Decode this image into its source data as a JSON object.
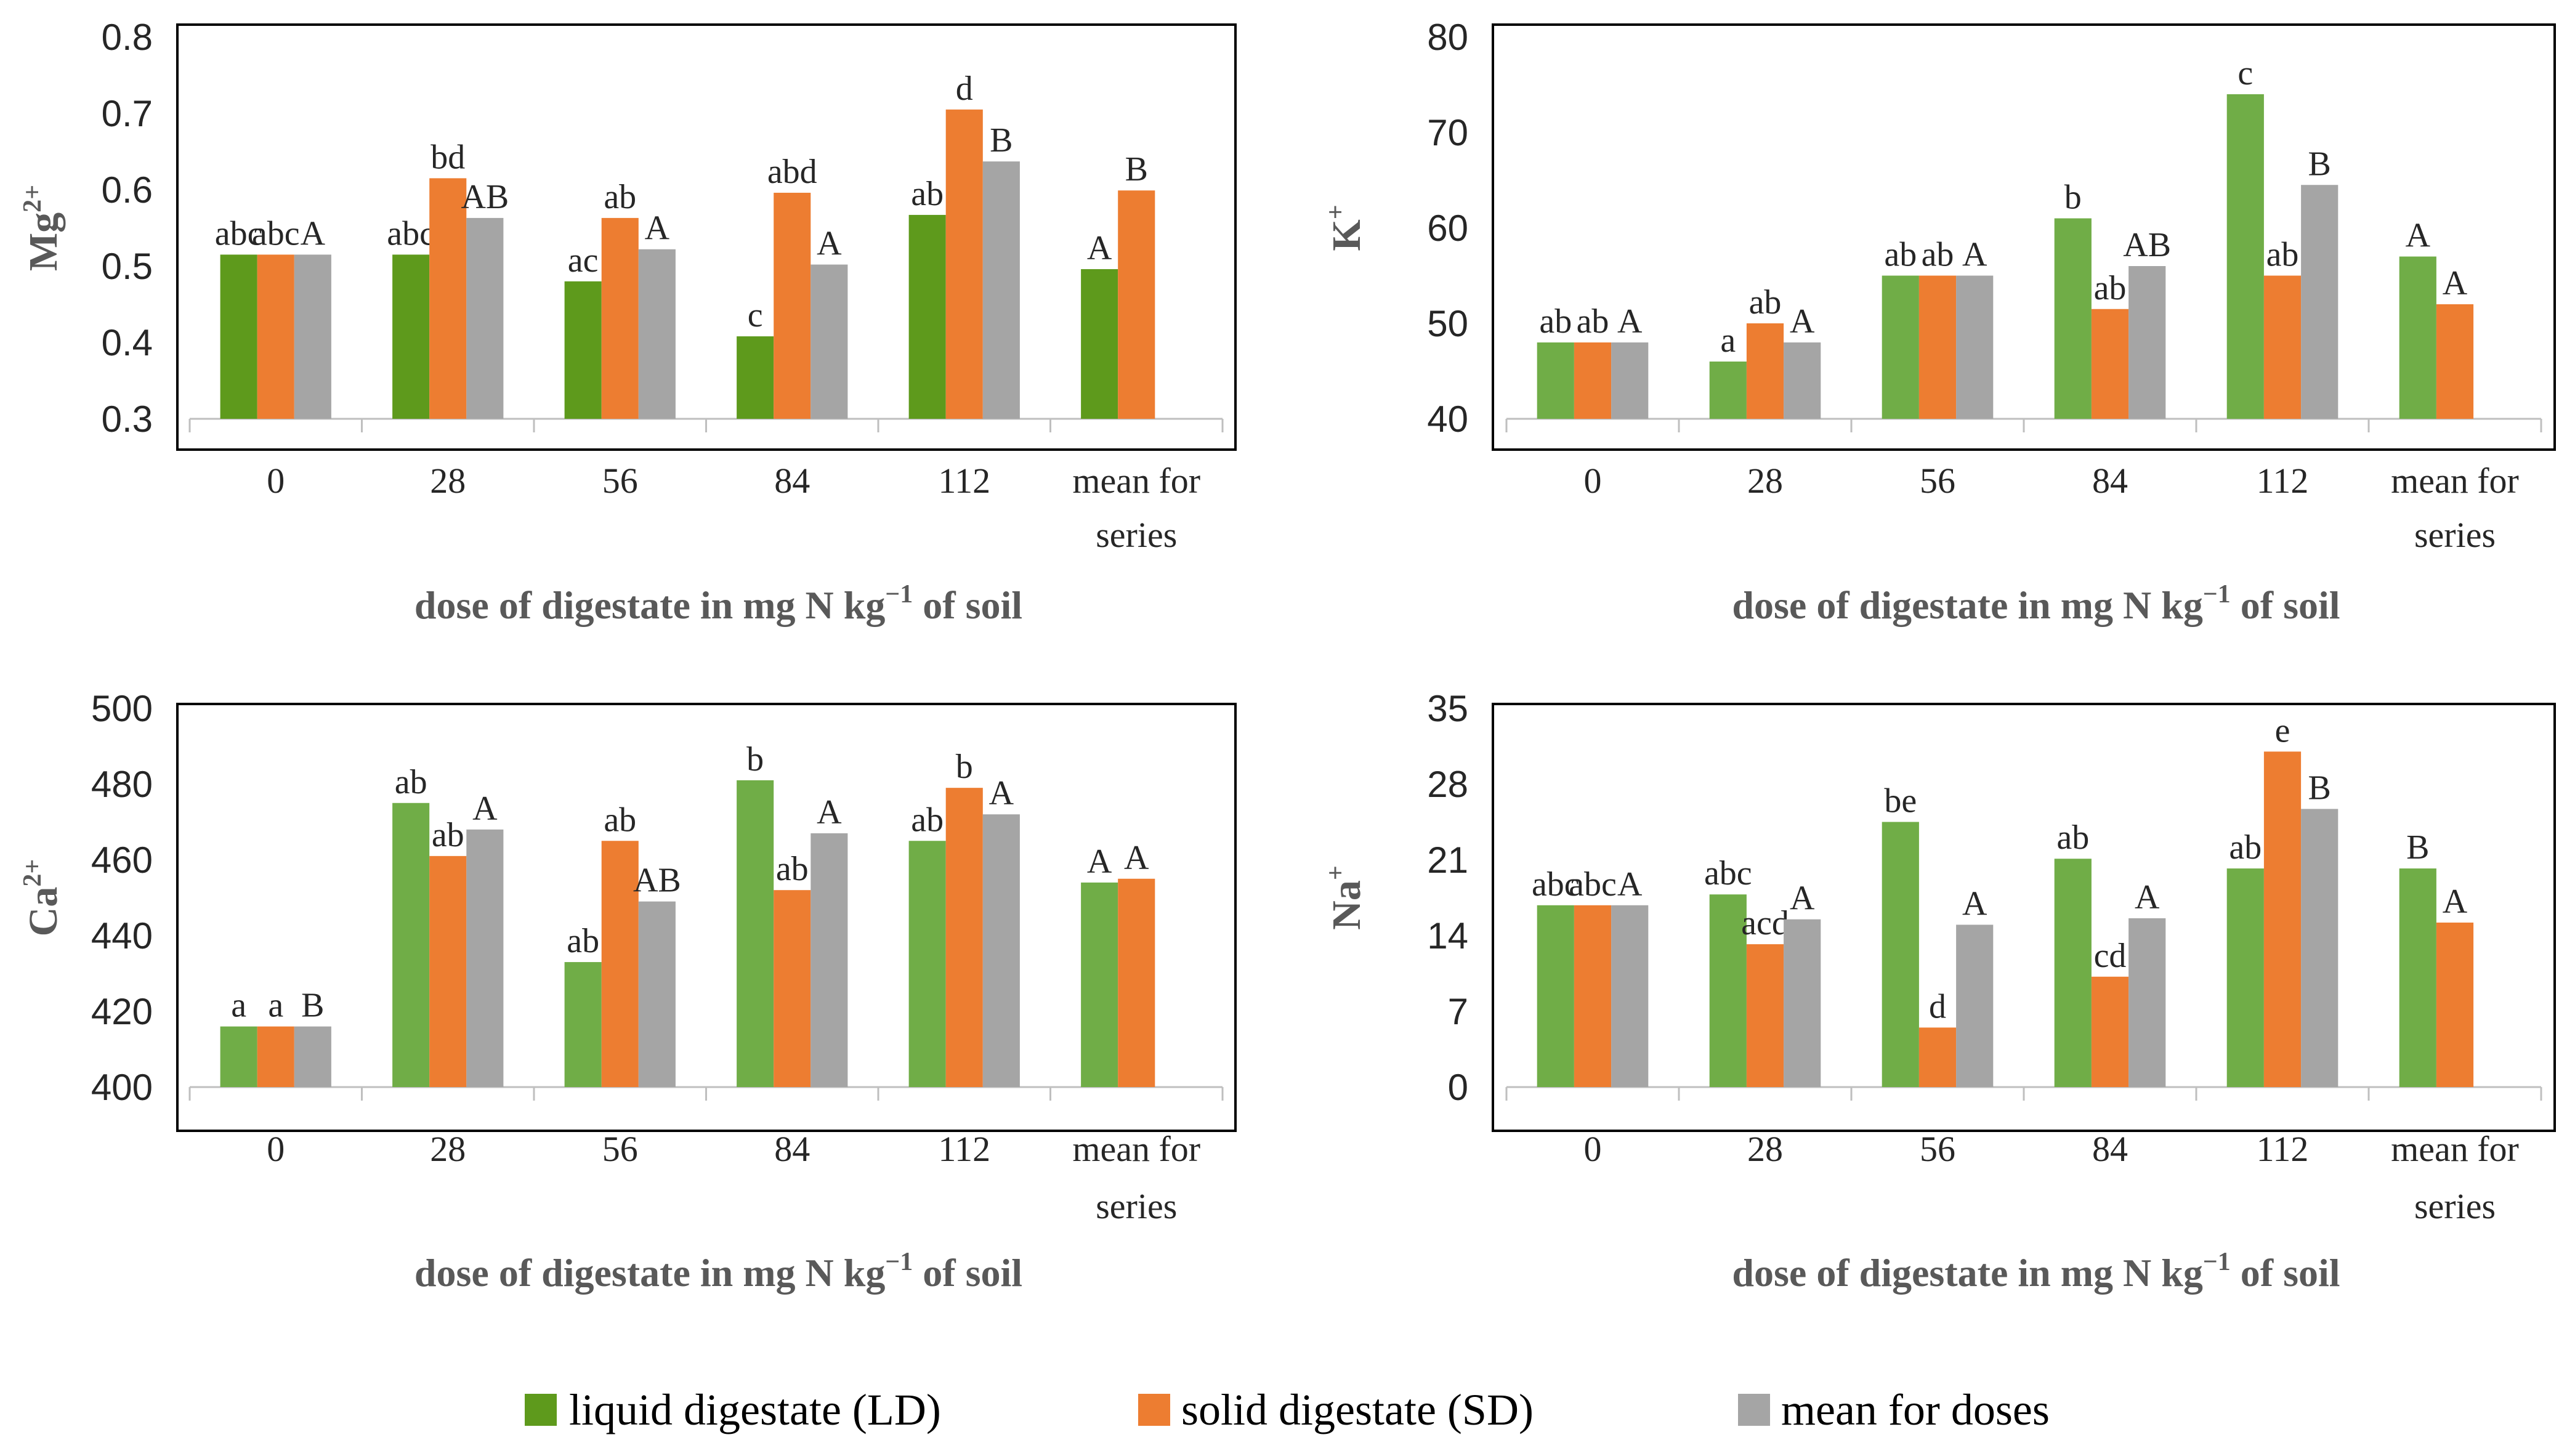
{
  "legend": [
    {
      "key": "ld",
      "label": "liquid digestate (LD)",
      "color": "#70ad47"
    },
    {
      "key": "sd",
      "label": "solid digestate (SD)",
      "color": "#ed7d31"
    },
    {
      "key": "mean",
      "label": "mean for doses",
      "color": "#a5a5a5"
    }
  ],
  "chart_data": [
    {
      "id": "mg",
      "type": "bar",
      "ylabel": "Mg",
      "ylabel_sup": "2+",
      "xlabel": "dose of digestate in mg N kg",
      "xlabel_sup": "−1",
      "xlabel_tail": " of soil",
      "ylim": [
        0.3,
        0.8
      ],
      "yticks": [
        "0.3",
        "0.4",
        "0.5",
        "0.6",
        "0.7",
        "0.8"
      ],
      "yticks_values": [
        0.3,
        0.4,
        0.5,
        0.6,
        0.7,
        0.8
      ],
      "categories": [
        [
          "0"
        ],
        [
          "28"
        ],
        [
          "56"
        ],
        [
          "84"
        ],
        [
          "112"
        ],
        [
          "mean for",
          "series"
        ]
      ],
      "series": [
        {
          "name": "liquid digestate (LD)",
          "color": "#5e9a1c",
          "values": [
            0.515,
            0.515,
            0.48,
            0.408,
            0.567,
            0.496
          ],
          "labels": [
            "abc",
            "abc",
            "ac",
            "c",
            "ab",
            "A"
          ]
        },
        {
          "name": "solid digestate (SD)",
          "color": "#ed7d31",
          "values": [
            0.515,
            0.615,
            0.563,
            0.596,
            0.705,
            0.599
          ],
          "labels": [
            "abc",
            "bd",
            "ab",
            "abd",
            "d",
            "B"
          ]
        },
        {
          "name": "mean for doses",
          "color": "#a5a5a5",
          "values": [
            0.515,
            0.563,
            0.522,
            0.502,
            0.637,
            null
          ],
          "labels": [
            "A",
            "AB",
            "A",
            "A",
            "B",
            ""
          ]
        }
      ]
    },
    {
      "id": "k",
      "type": "bar",
      "ylabel": "K",
      "ylabel_sup": "+",
      "xlabel": "dose of digestate in mg N kg",
      "xlabel_sup": "−1",
      "xlabel_tail": " of soil",
      "ylim": [
        40,
        80
      ],
      "yticks": [
        "40",
        "50",
        "60",
        "70",
        "80"
      ],
      "yticks_values": [
        40,
        50,
        60,
        70,
        80
      ],
      "categories": [
        [
          "0"
        ],
        [
          "28"
        ],
        [
          "56"
        ],
        [
          "84"
        ],
        [
          "112"
        ],
        [
          "mean for",
          "series"
        ]
      ],
      "series": [
        {
          "name": "liquid digestate (LD)",
          "color": "#70ad47",
          "values": [
            48,
            46,
            55,
            61,
            74,
            57
          ],
          "labels": [
            "ab",
            "a",
            "ab",
            "b",
            "c",
            "A"
          ]
        },
        {
          "name": "solid digestate (SD)",
          "color": "#ed7d31",
          "values": [
            48,
            50,
            55,
            51.5,
            55,
            52
          ],
          "labels": [
            "ab",
            "ab",
            "ab",
            "ab",
            "ab",
            "A"
          ]
        },
        {
          "name": "mean for doses",
          "color": "#a5a5a5",
          "values": [
            48,
            48,
            55,
            56,
            64.5,
            null
          ],
          "labels": [
            "A",
            "A",
            "A",
            "AB",
            "B",
            ""
          ]
        }
      ]
    },
    {
      "id": "ca",
      "type": "bar",
      "ylabel": "Ca",
      "ylabel_sup": "2+",
      "xlabel": "dose of digestate in mg N kg",
      "xlabel_sup": "−1",
      "xlabel_tail": " of soil",
      "ylim": [
        400,
        500
      ],
      "yticks": [
        "400",
        "420",
        "440",
        "460",
        "480",
        "500"
      ],
      "yticks_values": [
        400,
        420,
        440,
        460,
        480,
        500
      ],
      "categories": [
        [
          "0"
        ],
        [
          "28"
        ],
        [
          "56"
        ],
        [
          "84"
        ],
        [
          "112"
        ],
        [
          "mean for",
          "series"
        ]
      ],
      "series": [
        {
          "name": "liquid digestate (LD)",
          "color": "#70ad47",
          "values": [
            416,
            475,
            433,
            481,
            465,
            454
          ],
          "labels": [
            "a",
            "ab",
            "ab",
            "b",
            "ab",
            "A"
          ]
        },
        {
          "name": "solid digestate (SD)",
          "color": "#ed7d31",
          "values": [
            416,
            461,
            465,
            452,
            479,
            455
          ],
          "labels": [
            "a",
            "ab",
            "ab",
            "ab",
            "b",
            "A"
          ]
        },
        {
          "name": "mean for doses",
          "color": "#a5a5a5",
          "values": [
            416,
            468,
            449,
            467,
            472,
            null
          ],
          "labels": [
            "B",
            "A",
            "AB",
            "A",
            "A",
            ""
          ]
        }
      ]
    },
    {
      "id": "na",
      "type": "bar",
      "ylabel": "Na",
      "ylabel_sup": "+",
      "xlabel": "dose of digestate in mg N kg",
      "xlabel_sup": "−1",
      "xlabel_tail": " of soil",
      "ylim": [
        0,
        35
      ],
      "yticks": [
        "0",
        "7",
        "14",
        "21",
        "28",
        "35"
      ],
      "yticks_values": [
        0,
        7,
        14,
        21,
        28,
        35
      ],
      "categories": [
        [
          "0"
        ],
        [
          "28"
        ],
        [
          "56"
        ],
        [
          "84"
        ],
        [
          "112"
        ],
        [
          "mean for",
          "series"
        ]
      ],
      "series": [
        {
          "name": "liquid digestate (LD)",
          "color": "#70ad47",
          "values": [
            16.8,
            17.8,
            24.5,
            21.1,
            20.2,
            20.2
          ],
          "labels": [
            "abc",
            "abc",
            "be",
            "ab",
            "ab",
            "B"
          ]
        },
        {
          "name": "solid digestate (SD)",
          "color": "#ed7d31",
          "values": [
            16.8,
            13.2,
            5.5,
            10.2,
            31.0,
            15.2
          ],
          "labels": [
            "abc",
            "acd",
            "d",
            "cd",
            "e",
            "A"
          ]
        },
        {
          "name": "mean for doses",
          "color": "#a5a5a5",
          "values": [
            16.8,
            15.5,
            15.0,
            15.6,
            25.7,
            null
          ],
          "labels": [
            "A",
            "A",
            "A",
            "A",
            "B",
            ""
          ]
        }
      ]
    }
  ]
}
